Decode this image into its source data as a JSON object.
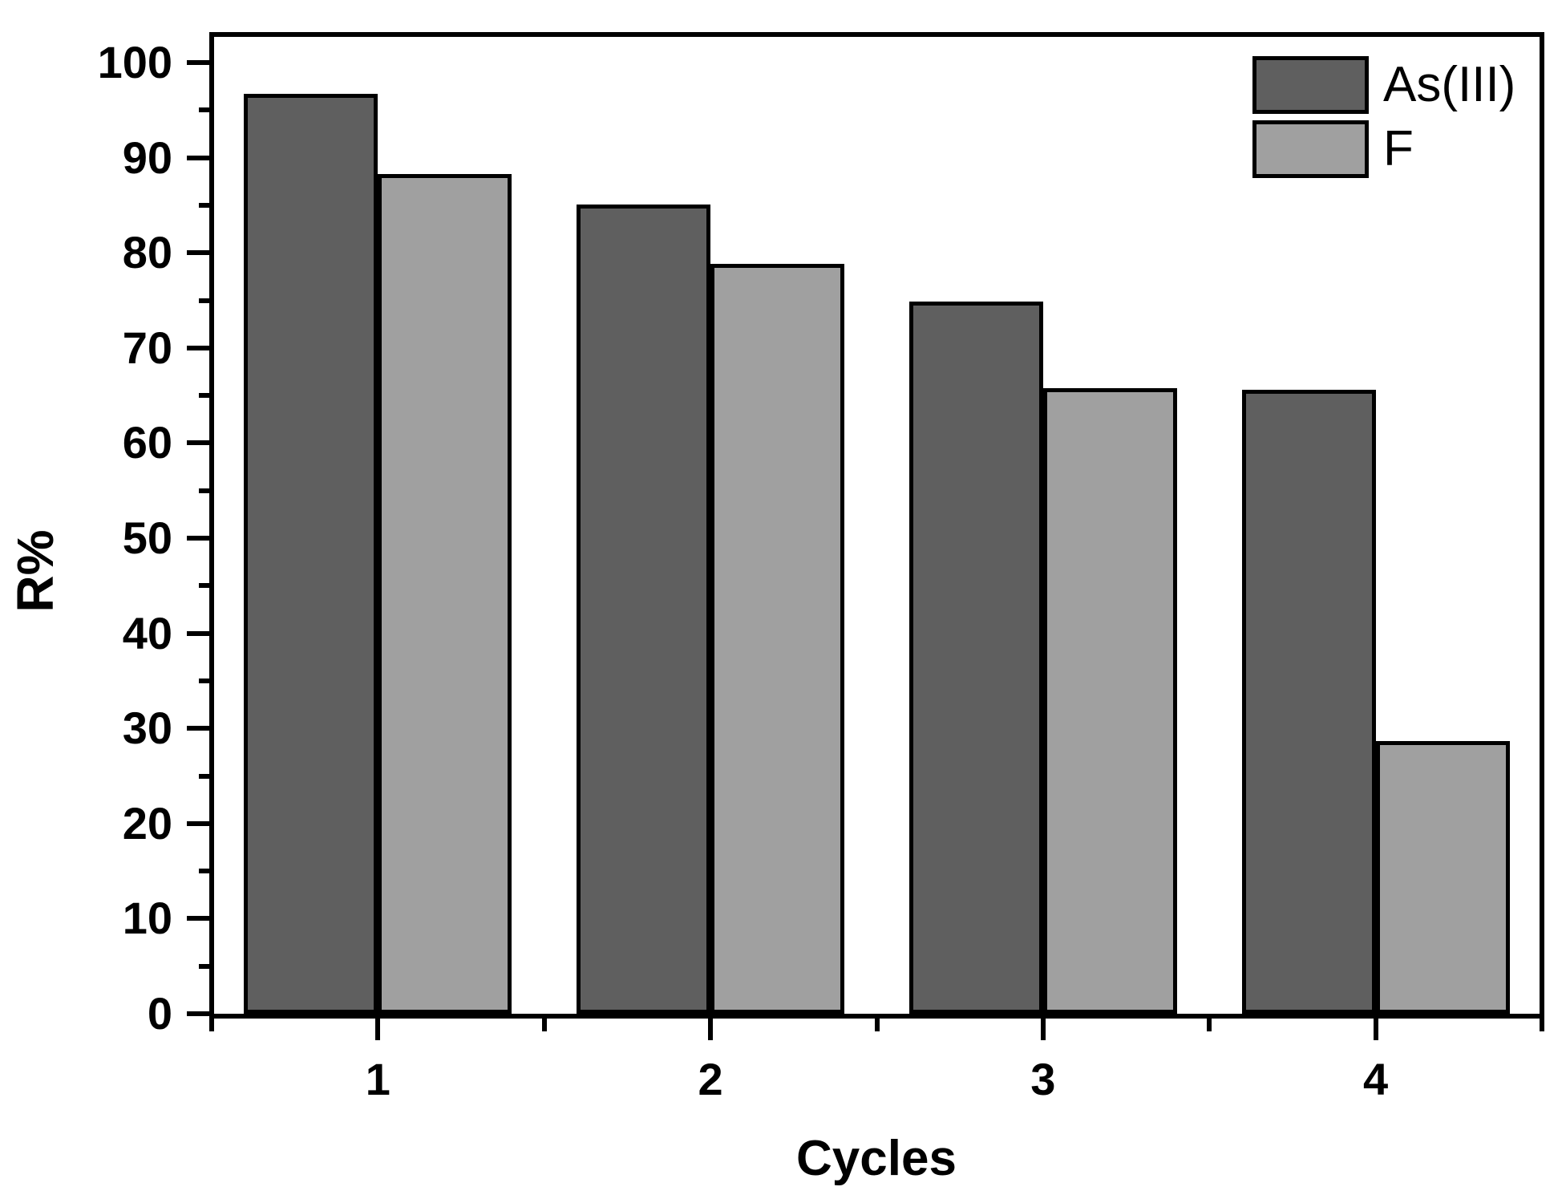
{
  "figure": {
    "background": "#ffffff",
    "frame_color": "#000000"
  },
  "chart_data": {
    "type": "bar",
    "title": "",
    "xlabel": "Cycles",
    "ylabel": "R%",
    "categories": [
      "1",
      "2",
      "3",
      "4"
    ],
    "series": [
      {
        "name": "As(III)",
        "color": "#5f5f5f",
        "values": [
          96.7,
          85.1,
          74.9,
          65.6
        ]
      },
      {
        "name": "F",
        "color": "#a0a0a0",
        "values": [
          88.3,
          78.8,
          65.8,
          28.7
        ]
      }
    ],
    "ylim": [
      0,
      103
    ],
    "y_major_ticks": [
      0,
      10,
      20,
      30,
      40,
      50,
      60,
      70,
      80,
      90,
      100
    ],
    "y_tick_labels": [
      "0",
      "10",
      "20",
      "30",
      "40",
      "50",
      "60",
      "70",
      "80",
      "90",
      "100"
    ],
    "y_minor_tick_step": 5,
    "x_minor_ticks_at_boundaries": true,
    "grid": false,
    "bar_outline_color": "#000000",
    "legend": {
      "position": "top-right",
      "entries": [
        "As(III)",
        "F"
      ]
    }
  }
}
